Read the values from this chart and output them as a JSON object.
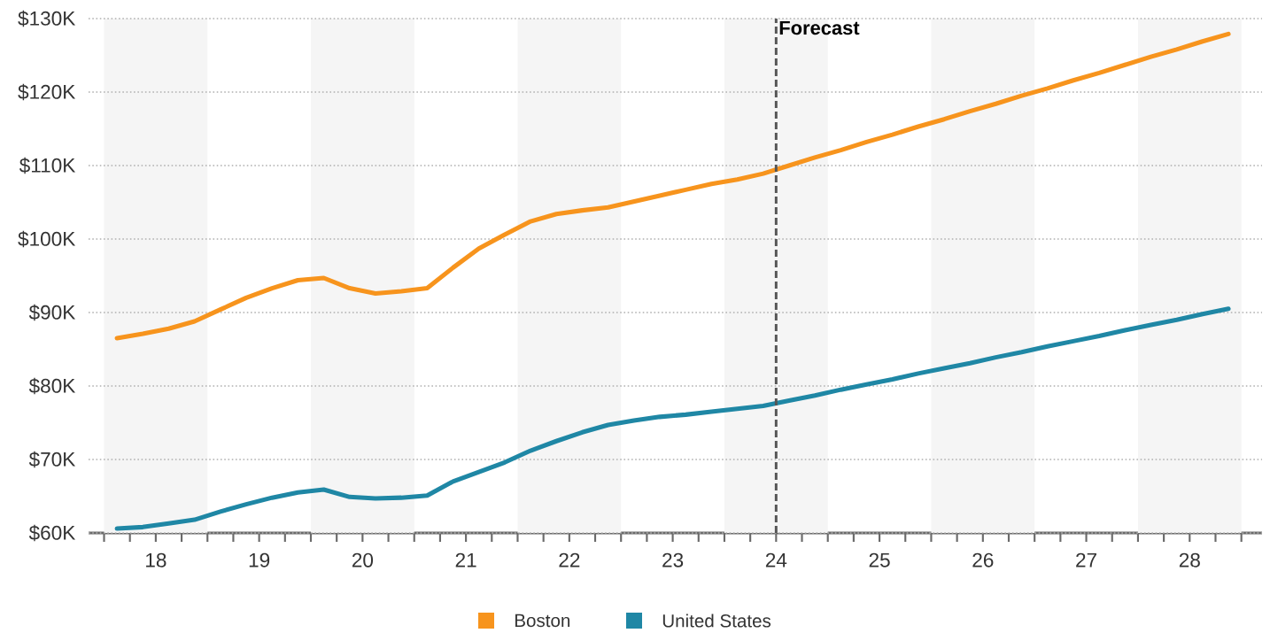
{
  "chart_data": {
    "type": "line",
    "x": [
      17.625,
      17.875,
      18.125,
      18.375,
      18.625,
      18.875,
      19.125,
      19.375,
      19.625,
      19.875,
      20.125,
      20.375,
      20.625,
      20.875,
      21.125,
      21.375,
      21.625,
      21.875,
      22.125,
      22.375,
      22.625,
      22.875,
      23.125,
      23.375,
      23.625,
      23.875,
      24.125,
      24.375,
      24.625,
      24.875,
      25.125,
      25.375,
      25.625,
      25.875,
      26.125,
      26.375,
      26.625,
      26.875,
      27.125,
      27.375,
      27.625,
      27.875,
      28.125,
      28.375
    ],
    "series": [
      {
        "name": "Boston",
        "color": "#f7941d",
        "values": [
          86.5,
          87.1,
          87.8,
          88.8,
          90.4,
          92.0,
          93.3,
          94.4,
          94.7,
          93.3,
          92.6,
          92.9,
          93.3,
          96.1,
          98.7,
          100.6,
          102.4,
          103.4,
          103.9,
          104.3,
          105.1,
          105.9,
          106.7,
          107.5,
          108.1,
          108.9,
          110.0,
          111.1,
          112.1,
          113.2,
          114.2,
          115.3,
          116.3,
          117.4,
          118.4,
          119.5,
          120.5,
          121.6,
          122.6,
          123.7,
          124.8,
          125.8,
          126.9,
          127.9
        ]
      },
      {
        "name": "United States",
        "color": "#1f87a5",
        "values": [
          60.6,
          60.8,
          61.3,
          61.8,
          62.9,
          63.9,
          64.8,
          65.5,
          65.9,
          64.9,
          64.7,
          64.8,
          65.1,
          67.0,
          68.3,
          69.6,
          71.2,
          72.5,
          73.7,
          74.7,
          75.3,
          75.8,
          76.1,
          76.5,
          76.9,
          77.3,
          78.0,
          78.7,
          79.5,
          80.2,
          80.9,
          81.7,
          82.4,
          83.1,
          83.9,
          84.6,
          85.4,
          86.1,
          86.8,
          87.6,
          88.3,
          89.0,
          89.8,
          90.5
        ]
      }
    ],
    "xlim": [
      17.35,
      28.7
    ],
    "ylim": [
      60,
      130
    ],
    "xticks": [
      {
        "value": 17.5,
        "label": null
      },
      {
        "value": 17.75,
        "label": null
      },
      {
        "value": 18,
        "label": "18"
      },
      {
        "value": 18.25,
        "label": null
      },
      {
        "value": 18.5,
        "label": null
      },
      {
        "value": 18.75,
        "label": null
      },
      {
        "value": 19,
        "label": "19"
      },
      {
        "value": 19.25,
        "label": null
      },
      {
        "value": 19.5,
        "label": null
      },
      {
        "value": 19.75,
        "label": null
      },
      {
        "value": 20,
        "label": "20"
      },
      {
        "value": 20.25,
        "label": null
      },
      {
        "value": 20.5,
        "label": null
      },
      {
        "value": 20.75,
        "label": null
      },
      {
        "value": 21,
        "label": "21"
      },
      {
        "value": 21.25,
        "label": null
      },
      {
        "value": 21.5,
        "label": null
      },
      {
        "value": 21.75,
        "label": null
      },
      {
        "value": 22,
        "label": "22"
      },
      {
        "value": 22.25,
        "label": null
      },
      {
        "value": 22.5,
        "label": null
      },
      {
        "value": 22.75,
        "label": null
      },
      {
        "value": 23,
        "label": "23"
      },
      {
        "value": 23.25,
        "label": null
      },
      {
        "value": 23.5,
        "label": null
      },
      {
        "value": 23.75,
        "label": null
      },
      {
        "value": 24,
        "label": "24"
      },
      {
        "value": 24.25,
        "label": null
      },
      {
        "value": 24.5,
        "label": null
      },
      {
        "value": 24.75,
        "label": null
      },
      {
        "value": 25,
        "label": "25"
      },
      {
        "value": 25.25,
        "label": null
      },
      {
        "value": 25.5,
        "label": null
      },
      {
        "value": 25.75,
        "label": null
      },
      {
        "value": 26,
        "label": "26"
      },
      {
        "value": 26.25,
        "label": null
      },
      {
        "value": 26.5,
        "label": null
      },
      {
        "value": 26.75,
        "label": null
      },
      {
        "value": 27,
        "label": "27"
      },
      {
        "value": 27.25,
        "label": null
      },
      {
        "value": 27.5,
        "label": null
      },
      {
        "value": 27.75,
        "label": null
      },
      {
        "value": 28,
        "label": "28"
      },
      {
        "value": 28.25,
        "label": null
      },
      {
        "value": 28.5,
        "label": null
      }
    ],
    "yticks": [
      {
        "value": 60,
        "label": "$60K"
      },
      {
        "value": 70,
        "label": "$70K"
      },
      {
        "value": 80,
        "label": "$80K"
      },
      {
        "value": 90,
        "label": "$90K"
      },
      {
        "value": 100,
        "label": "$100K"
      },
      {
        "value": 110,
        "label": "$110K"
      },
      {
        "value": 120,
        "label": "$120K"
      },
      {
        "value": 130,
        "label": "$130K"
      }
    ],
    "grid": "y",
    "legend": "bottom",
    "line_style": "solid",
    "bands": [
      {
        "axis": "x",
        "from": 17.5,
        "to": 18.5,
        "color": "#f5f5f5"
      },
      {
        "axis": "x",
        "from": 19.5,
        "to": 20.5,
        "color": "#f5f5f5"
      },
      {
        "axis": "x",
        "from": 21.5,
        "to": 22.5,
        "color": "#f5f5f5"
      },
      {
        "axis": "x",
        "from": 23.5,
        "to": 24.5,
        "color": "#f5f5f5"
      },
      {
        "axis": "x",
        "from": 25.5,
        "to": 26.5,
        "color": "#f5f5f5"
      },
      {
        "axis": "x",
        "from": 27.5,
        "to": 28.5,
        "color": "#f5f5f5"
      }
    ],
    "ref_lines": [
      {
        "axis": "x",
        "value": 24,
        "label": "Forecast",
        "color": "#555555",
        "line_style": "dashed"
      }
    ]
  }
}
